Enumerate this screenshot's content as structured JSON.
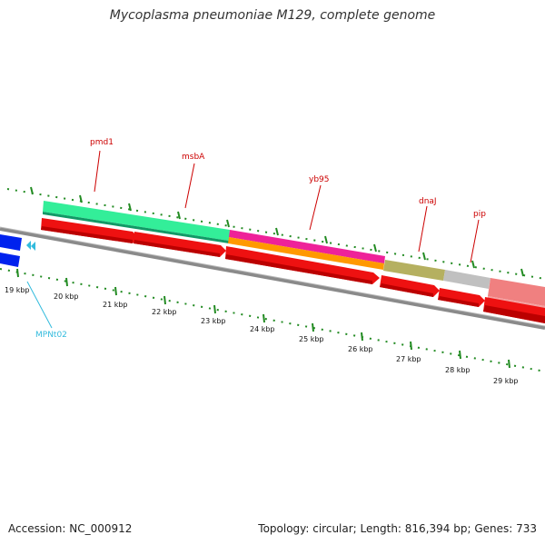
{
  "title": "Mycoplasma pneumoniae M129, complete genome",
  "footer": {
    "accession": "Accession: NC_000912",
    "topology": "Topology: circular; Length: 816,394 bp; Genes: 733"
  },
  "track": {
    "ticks_kbp": [
      "19 kbp",
      "20 kbp",
      "21 kbp",
      "22 kbp",
      "23 kbp",
      "24 kbp",
      "25 kbp",
      "26 kbp",
      "27 kbp",
      "28 kbp",
      "29 kbp"
    ]
  },
  "features": [
    {
      "label": "pmd1",
      "color": "#cc0000"
    },
    {
      "label": "msbA",
      "color": "#cc0000"
    },
    {
      "label": "yb95",
      "color": "#cc0000"
    },
    {
      "label": "dnaJ",
      "color": "#cc0000"
    },
    {
      "label": "pip",
      "color": "#cc0000"
    },
    {
      "label": "MPNt02",
      "color": "#33bbdd"
    }
  ],
  "colors": {
    "backbone": "#8a8a8a",
    "tick": "#228b22",
    "gene_red": "#ee1111",
    "cds_green": "#33ee99",
    "cds_pink": "#ee2299",
    "cds_orange": "#ff9900",
    "cds_olive": "#b5b060",
    "cds_grey": "#c0c0c0",
    "cds_salmon": "#f08080",
    "trna_blue": "#0022ee",
    "trna_cyan": "#33bbdd"
  }
}
